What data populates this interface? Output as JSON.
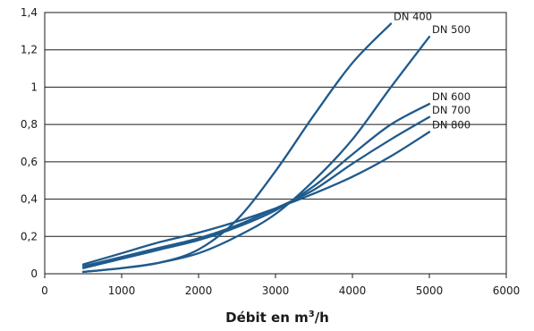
{
  "chart_data": {
    "type": "line",
    "title": "",
    "xlabel_prefix": "Débit en m",
    "xlabel_sup": "3",
    "xlabel_suffix": "/h",
    "ylabel": "",
    "xlim": [
      0,
      6000
    ],
    "ylim": [
      0,
      1.4
    ],
    "x_ticks": [
      0,
      1000,
      2000,
      3000,
      4000,
      5000,
      6000
    ],
    "x_tick_labels": [
      "0",
      "1000",
      "2000",
      "3000",
      "4000",
      "5000",
      "6000"
    ],
    "y_ticks": [
      0,
      0.2,
      0.4,
      0.6,
      0.8,
      1.0,
      1.2,
      1.4
    ],
    "y_tick_labels": [
      "0",
      "0,2",
      "0,4",
      "0,6",
      "0,8",
      "1",
      "1,2",
      "1,4"
    ],
    "grid": "horizontal",
    "legend": "none",
    "line_color": "#1f5a8c",
    "series": [
      {
        "name": "DN 400",
        "x": [
          500,
          1000,
          1500,
          2000,
          2500,
          3000,
          3500,
          4000,
          4500
        ],
        "y": [
          0.01,
          0.03,
          0.06,
          0.13,
          0.29,
          0.55,
          0.85,
          1.13,
          1.34
        ]
      },
      {
        "name": "DN 500",
        "x": [
          500,
          1000,
          1500,
          2000,
          2500,
          3000,
          3500,
          4000,
          4500,
          5000
        ],
        "y": [
          0.01,
          0.03,
          0.06,
          0.11,
          0.2,
          0.32,
          0.5,
          0.72,
          1.0,
          1.27
        ]
      },
      {
        "name": "DN 600",
        "x": [
          500,
          1000,
          1500,
          2000,
          2500,
          3000,
          3500,
          4000,
          4500,
          5000
        ],
        "y": [
          0.03,
          0.08,
          0.13,
          0.18,
          0.25,
          0.34,
          0.47,
          0.64,
          0.8,
          0.91
        ]
      },
      {
        "name": "DN 700",
        "x": [
          500,
          1000,
          1500,
          2000,
          2500,
          3000,
          3500,
          4000,
          4500,
          5000
        ],
        "y": [
          0.04,
          0.09,
          0.14,
          0.19,
          0.26,
          0.35,
          0.45,
          0.59,
          0.72,
          0.84
        ]
      },
      {
        "name": "DN 800",
        "x": [
          500,
          1000,
          1500,
          2000,
          2500,
          3000,
          3500,
          4000,
          4500,
          5000
        ],
        "y": [
          0.05,
          0.11,
          0.17,
          0.22,
          0.28,
          0.35,
          0.43,
          0.52,
          0.63,
          0.76
        ]
      }
    ]
  }
}
